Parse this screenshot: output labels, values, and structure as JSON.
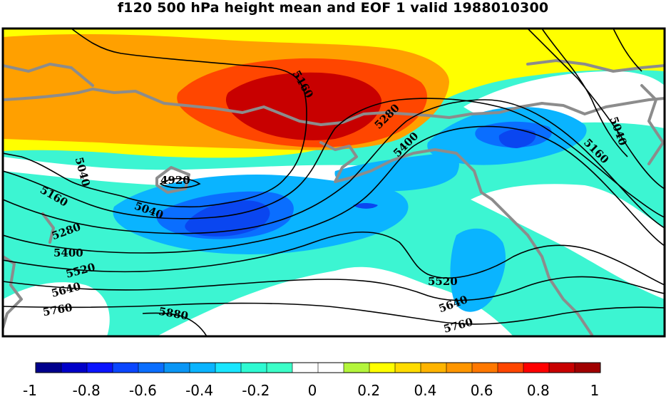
{
  "title": "f120 500 hPa height mean and EOF 1 valid 1988010300",
  "colorbar": {
    "colors": [
      "#00008c",
      "#0000c8",
      "#0a14ff",
      "#0a46ff",
      "#0a6eff",
      "#0a96f5",
      "#0ab4ff",
      "#19e6ff",
      "#2efad2",
      "#3cffc8",
      "#ffffff",
      "#ffffff",
      "#b4f53c",
      "#ffff00",
      "#ffdc00",
      "#ffb400",
      "#ff9600",
      "#ff7800",
      "#ff4600",
      "#ff0000",
      "#c80000",
      "#a00000"
    ],
    "tick_labels": [
      "-1",
      "-0.8",
      "-0.6",
      "-0.4",
      "-0.2",
      "0",
      "0.2",
      "0.4",
      "0.6",
      "0.8",
      "1"
    ]
  },
  "contour_labels": [
    "5160",
    "5280",
    "5400",
    "5040",
    "4920",
    "5040",
    "5160",
    "5280",
    "5400",
    "5520",
    "5640",
    "5760",
    "5880",
    "5520",
    "5640",
    "5760",
    "5040",
    "5160"
  ],
  "colors": {
    "teal": "#3cf5d2",
    "light_blue": "#0ab4ff",
    "mid_blue": "#0a6eff",
    "dark_blue": "#0a46f0",
    "yellow": "#ffff00",
    "orange": "#ffa000",
    "red_orange": "#ff4600",
    "dark_red": "#c80000",
    "coast": "#8c8c8c",
    "contour": "#000000"
  }
}
